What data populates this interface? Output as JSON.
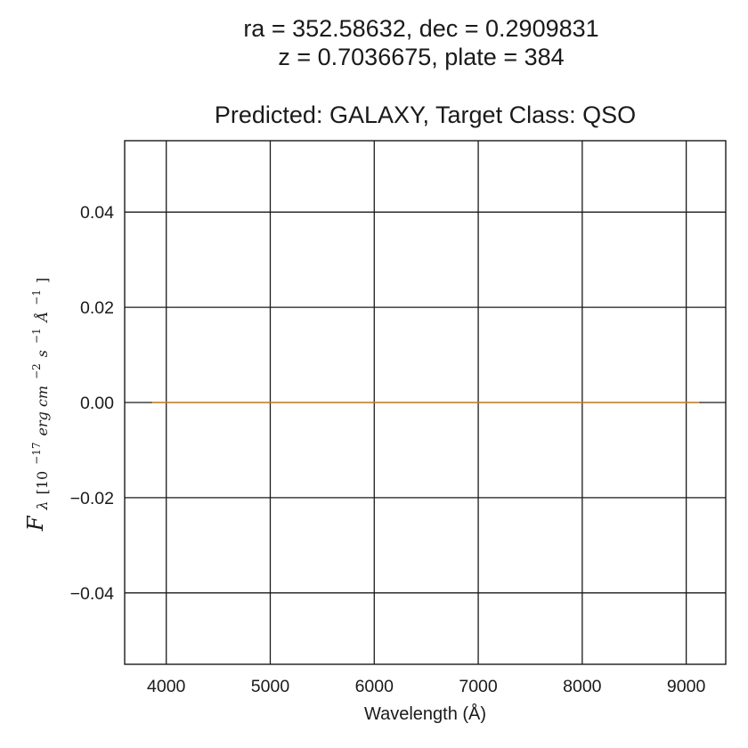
{
  "chart_data": {
    "type": "line",
    "title_lines": [
      "ra = 352.58632, dec = 0.2909831",
      "z = 0.7036675, plate = 384"
    ],
    "subtitle": "Predicted: GALAXY, Target Class: QSO",
    "xlabel": "Wavelength (Å)",
    "ylabel": "F_λ[10^-17 erg cm^-2 s^-1 Å^-1]",
    "ylabel_parts": {
      "main": "F",
      "sub_symbol": "λ",
      "sub_prefix": "[10",
      "exp1": "−17",
      "middle": "erg cm",
      "exp2": "−2",
      "s": "s",
      "exp3": "−1",
      "ang": "Å",
      "exp4": "−1",
      "close": "]"
    },
    "xlim": [
      3600,
      9380
    ],
    "ylim": [
      -0.055,
      0.055
    ],
    "x_ticks": [
      4000,
      5000,
      6000,
      7000,
      8000,
      9000
    ],
    "x_tick_labels": [
      "4000",
      "5000",
      "6000",
      "7000",
      "8000",
      "9000"
    ],
    "y_ticks": [
      0.04,
      0.02,
      0.0,
      -0.02,
      -0.04
    ],
    "y_tick_labels": [
      "0.04",
      "0.02",
      "0.00",
      "−0.02",
      "−0.04"
    ],
    "grid": true,
    "series": [
      {
        "color": "#1a1a1a",
        "x": [
          3850,
          9140
        ],
        "y": [
          0.0,
          0.0
        ]
      },
      {
        "color": "#e8962c",
        "x": [
          3860,
          9130
        ],
        "y": [
          0.0,
          0.0
        ]
      }
    ]
  }
}
